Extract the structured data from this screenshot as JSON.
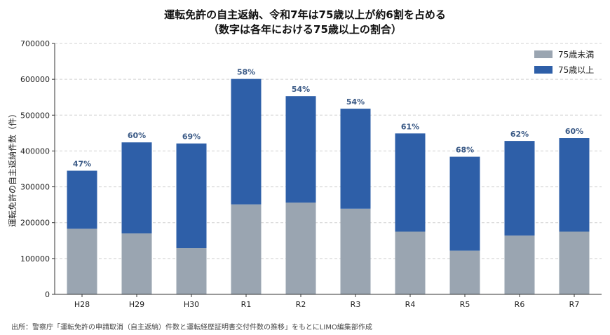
{
  "title_line1": "運転免許の自主返納、令和7年は75歳以上が約6割を占める",
  "title_line2": "（数字は各年における75歳以上の割合）",
  "source": "出所：警察庁「運転免許の申請取消（自主返納）件数と運転経歴証明書交付件数の推移」をもとにLIMO編集部作成",
  "colors": {
    "under75": "#9aa5b1",
    "over75": "#2e5fa8",
    "pct_label": "#3b5a86"
  },
  "chart_data": {
    "type": "bar",
    "stacked": true,
    "title": "運転免許の自主返納、令和7年は75歳以上が約6割を占める",
    "subtitle": "（数字は各年における75歳以上の割合）",
    "xlabel": "",
    "ylabel": "運転免許の自主返納件数（件）",
    "ylim": [
      0,
      700000
    ],
    "yticks": [
      0,
      100000,
      200000,
      300000,
      400000,
      500000,
      600000,
      700000
    ],
    "grid": true,
    "legend_position": "top-right",
    "categories": [
      "H28",
      "H29",
      "H30",
      "R1",
      "R2",
      "R3",
      "R4",
      "R5",
      "R6",
      "R7"
    ],
    "series": [
      {
        "name": "75歳未満",
        "values": [
          183000,
          170000,
          129000,
          251000,
          256000,
          239000,
          175000,
          122000,
          164000,
          175000
        ]
      },
      {
        "name": "75歳以上",
        "values": [
          162000,
          254000,
          292000,
          350000,
          297000,
          279000,
          274000,
          262000,
          264000,
          261000
        ]
      }
    ],
    "annotations": [
      "47%",
      "60%",
      "69%",
      "58%",
      "54%",
      "54%",
      "61%",
      "68%",
      "62%",
      "60%"
    ]
  }
}
